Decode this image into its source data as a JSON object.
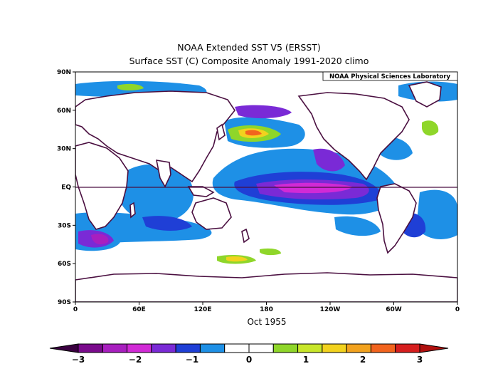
{
  "title": "NOAA Extended SST V5 (ERSST)",
  "subtitle": "Surface SST (C) Composite Anomaly 1991-2020 climo",
  "credit": "NOAA Physical Sciences Laboratory",
  "period_label": "Oct 1955",
  "lat_ticks": [
    "90N",
    "60N",
    "30N",
    "EQ",
    "30S",
    "60S",
    "90S"
  ],
  "lon_ticks": [
    "0",
    "60E",
    "120E",
    "180",
    "120W",
    "60W",
    "0"
  ],
  "colorbar": {
    "ticks": [
      "-3",
      "-2",
      "-1",
      "0",
      "1",
      "2",
      "3"
    ],
    "colors": [
      "#7a0a8c",
      "#a81fbf",
      "#d12ad6",
      "#7a2ad6",
      "#1f3fd6",
      "#1e90e6",
      "#ffffff",
      "#ffffff",
      "#8fd62a",
      "#c8e62a",
      "#f2d21e",
      "#f2a21e",
      "#f2641e",
      "#d61e1e"
    ],
    "low_end_color": "#3a0040",
    "high_end_color": "#b0100e",
    "range": [
      -3,
      3
    ],
    "step": 0.5
  },
  "map": {
    "lon_range": [
      0,
      360
    ],
    "lat_range": [
      -90,
      90
    ],
    "equator_line": true
  }
}
